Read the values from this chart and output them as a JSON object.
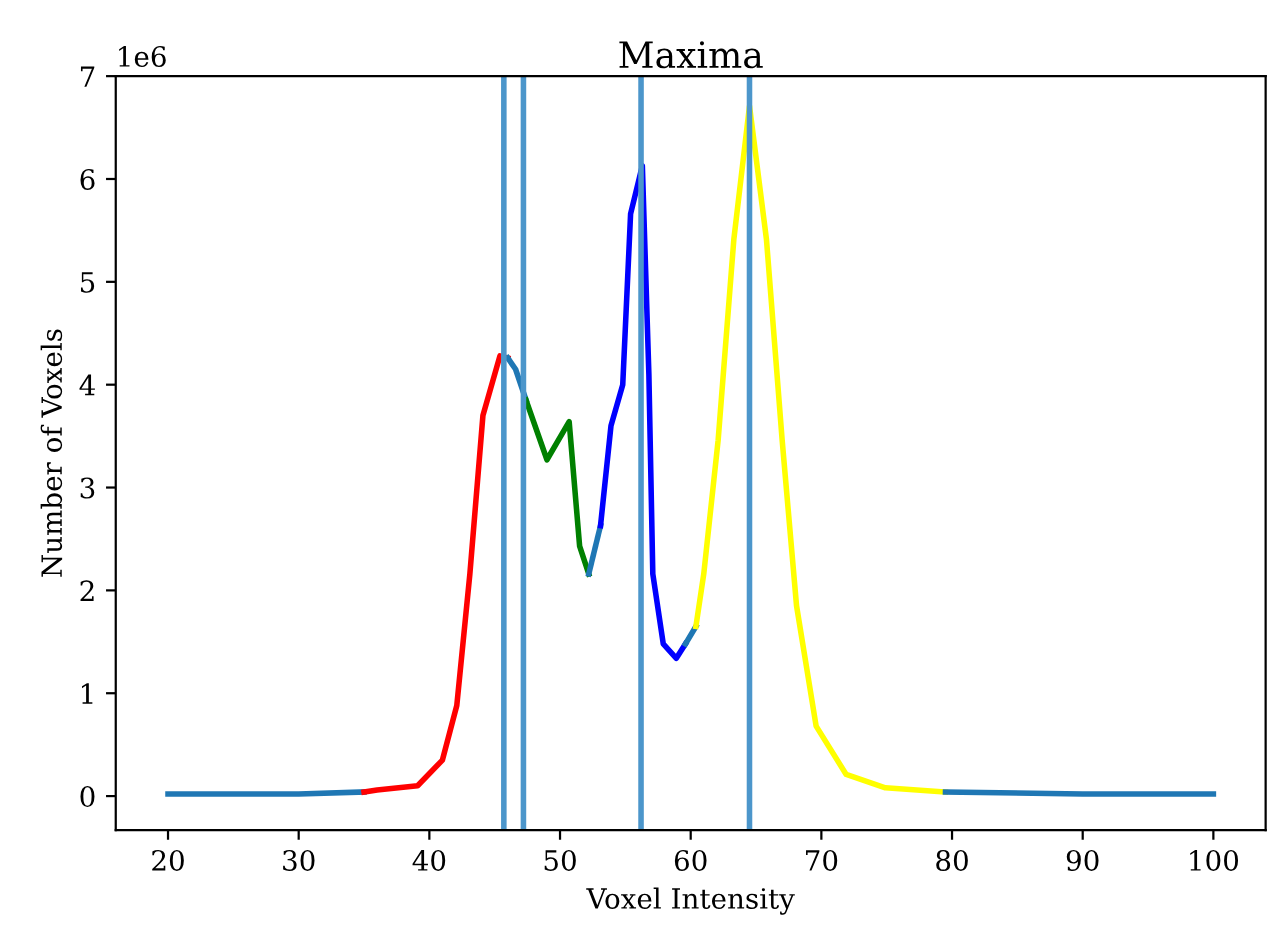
{
  "chart_data": {
    "type": "line",
    "title": "Maxima",
    "xlabel": "Voxel Intensity",
    "ylabel": "Number of Voxels",
    "xlim": [
      16,
      104
    ],
    "xticks": [
      20,
      30,
      40,
      50,
      60,
      70,
      80,
      90,
      100
    ],
    "ylim": [
      -0.33,
      7
    ],
    "yticks": [
      0,
      1,
      2,
      3,
      4,
      5,
      6,
      7
    ],
    "annotations": [
      "1e6"
    ],
    "grid": false,
    "series": [
      {
        "color": "#1f77b4",
        "x": [
          20,
          30,
          35
        ],
        "values": [
          0.02,
          0.02,
          0.04
        ]
      },
      {
        "color": "#ff0000",
        "x": [
          35,
          36,
          39.1,
          41,
          42.1,
          43.1,
          44.1,
          45.4,
          46
        ],
        "values": [
          0.04,
          0.06,
          0.1,
          0.35,
          0.88,
          2.16,
          3.7,
          4.28,
          4.26
        ]
      },
      {
        "color": "#1f77b4",
        "x": [
          46,
          46.6,
          47.4
        ],
        "values": [
          4.26,
          4.15,
          3.85
        ]
      },
      {
        "color": "#008000",
        "x": [
          47.4,
          49,
          50.7,
          51.5,
          52.2
        ],
        "values": [
          3.85,
          3.27,
          3.64,
          2.43,
          2.16
        ]
      },
      {
        "color": "#1f77b4",
        "x": [
          52.2,
          53.1
        ],
        "values": [
          2.16,
          2.63
        ]
      },
      {
        "color": "#0000ff",
        "x": [
          53.1,
          53.9,
          54.8,
          55.4,
          56.3,
          56.8,
          57.1,
          57.9,
          58.9,
          59.6
        ],
        "values": [
          2.63,
          3.6,
          4.0,
          5.66,
          6.13,
          4.1,
          2.16,
          1.48,
          1.34,
          1.48
        ]
      },
      {
        "color": "#1f77b4",
        "x": [
          59.6,
          60.4
        ],
        "values": [
          1.48,
          1.65
        ]
      },
      {
        "color": "#ffff00",
        "x": [
          60.4,
          61,
          62.1,
          63.3,
          64.5,
          65.8,
          67,
          68.1,
          69.6,
          71.9,
          74.9,
          79.5
        ],
        "values": [
          1.65,
          2.16,
          3.46,
          5.41,
          6.71,
          5.41,
          3.46,
          1.85,
          0.68,
          0.21,
          0.08,
          0.04
        ]
      },
      {
        "color": "#1f77b4",
        "x": [
          79.5,
          90,
          100
        ],
        "values": [
          0.04,
          0.02,
          0.02
        ]
      }
    ],
    "ref_lines": [
      {
        "axis": "x",
        "value": 45.7,
        "color": "#4c96cb"
      },
      {
        "axis": "x",
        "value": 47.2,
        "color": "#4c96cb"
      },
      {
        "axis": "x",
        "value": 56.2,
        "color": "#4c96cb"
      },
      {
        "axis": "x",
        "value": 64.5,
        "color": "#4c96cb"
      }
    ]
  }
}
